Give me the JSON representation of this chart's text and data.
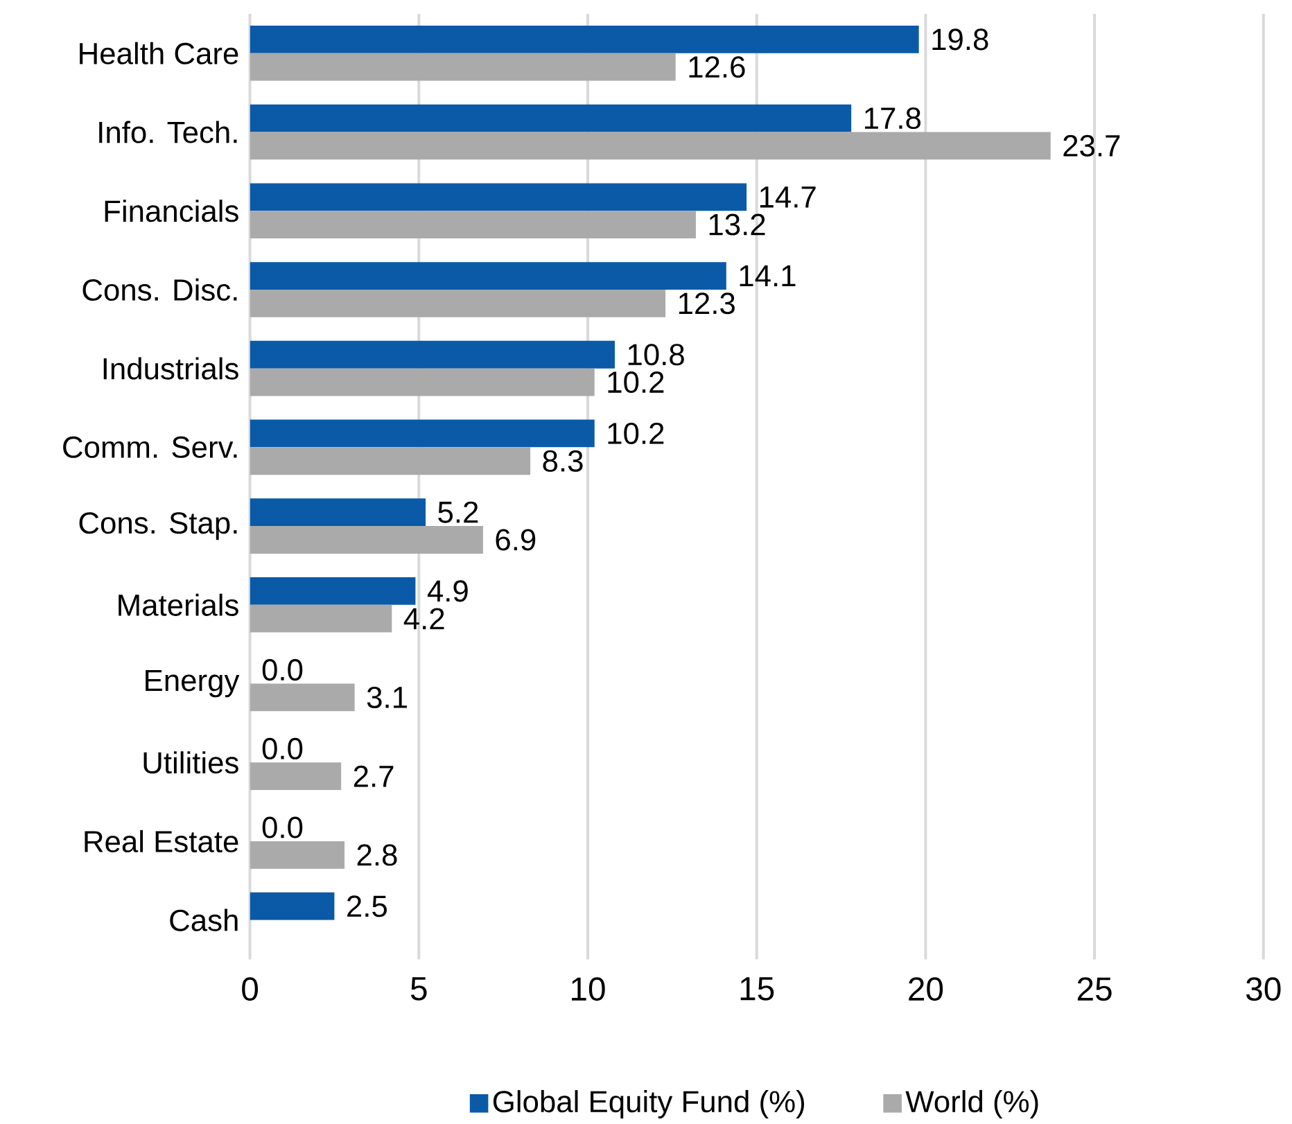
{
  "chart_data": {
    "type": "bar",
    "orientation": "horizontal",
    "categories": [
      "Health Care",
      "Info. Tech.",
      "Financials",
      "Cons. Disc.",
      "Industrials",
      "Comm. Serv.",
      "Cons. Stap.",
      "Materials",
      "Energy",
      "Utilities",
      "Real Estate",
      "Cash"
    ],
    "series": [
      {
        "name": "Global Equity Fund (%)",
        "color": "#0a5aa8",
        "values": [
          19.8,
          17.8,
          14.7,
          14.1,
          10.8,
          10.2,
          5.2,
          4.9,
          0.0,
          0.0,
          0.0,
          2.5
        ],
        "value_labels": [
          "19.8",
          "17.8",
          "14.7",
          "14.1",
          "10.8",
          "10.2",
          "5.2",
          "4.9",
          "0.0",
          "0.0",
          "0.0",
          "2.5"
        ]
      },
      {
        "name": "World (%)",
        "color": "#aaaaaa",
        "values": [
          12.6,
          23.7,
          13.2,
          12.3,
          10.2,
          8.3,
          6.9,
          4.2,
          3.1,
          2.7,
          2.8,
          null
        ],
        "value_labels": [
          "12.6",
          "23.7",
          "13.2",
          "12.3",
          "10.2",
          "8.3",
          "6.9",
          "4.2",
          "3.1",
          "2.7",
          "2.8",
          null
        ]
      }
    ],
    "xlim": [
      0,
      30
    ],
    "xticks": [
      0,
      5,
      10,
      15,
      20,
      25,
      30
    ],
    "grid": "x",
    "legend": "bottom"
  }
}
